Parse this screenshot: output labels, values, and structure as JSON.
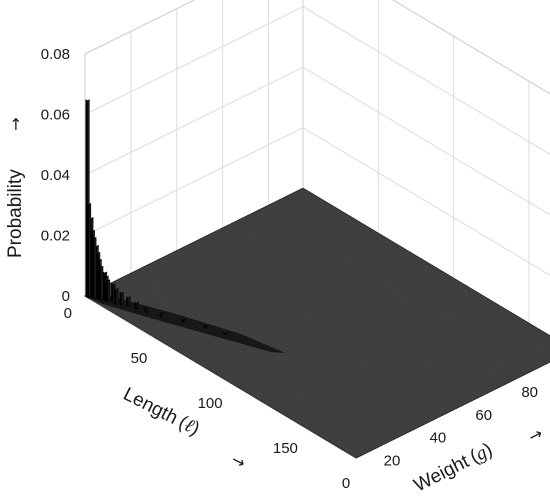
{
  "chart_data": {
    "type": "3d-histogram",
    "title": "",
    "zlabel": "Probability",
    "zlabel_arrow": "→",
    "xlabel_text": "Length",
    "xlabel_symbol_open": "(",
    "xlabel_symbol": "ℓ",
    "xlabel_symbol_close": ")",
    "xlabel_arrow": "→",
    "ylabel_text": "Weight",
    "ylabel_symbol_open": "(",
    "ylabel_symbol": "g",
    "ylabel_symbol_close": ")",
    "ylabel_arrow": "→",
    "x_ticks": [
      "0",
      "50",
      "100",
      "150"
    ],
    "y_ticks": [
      "0",
      "20",
      "40",
      "60",
      "80"
    ],
    "z_ticks": [
      "0",
      "0.02",
      "0.04",
      "0.06",
      "0.08"
    ],
    "xlim": [
      0,
      180
    ],
    "ylim": [
      0,
      95
    ],
    "zlim": [
      0,
      0.08
    ],
    "grid": true,
    "surface_color": "#3d3d3d",
    "bar_color": "#000000",
    "peak_bars": [
      {
        "length": 1,
        "weight": 0,
        "probability": 0.065
      },
      {
        "length": 2,
        "weight": 0,
        "probability": 0.031
      },
      {
        "length": 2,
        "weight": 1,
        "probability": 0.026
      },
      {
        "length": 3,
        "weight": 1,
        "probability": 0.022
      },
      {
        "length": 4,
        "weight": 1,
        "probability": 0.02
      },
      {
        "length": 4,
        "weight": 2,
        "probability": 0.017
      },
      {
        "length": 5,
        "weight": 2,
        "probability": 0.015
      },
      {
        "length": 6,
        "weight": 2,
        "probability": 0.013
      },
      {
        "length": 7,
        "weight": 2,
        "probability": 0.011
      },
      {
        "length": 8,
        "weight": 3,
        "probability": 0.009
      },
      {
        "length": 9,
        "weight": 3,
        "probability": 0.008
      },
      {
        "length": 10,
        "weight": 3,
        "probability": 0.007
      },
      {
        "length": 12,
        "weight": 4,
        "probability": 0.006
      },
      {
        "length": 14,
        "weight": 4,
        "probability": 0.005
      },
      {
        "length": 16,
        "weight": 5,
        "probability": 0.004
      },
      {
        "length": 19,
        "weight": 6,
        "probability": 0.003
      },
      {
        "length": 23,
        "weight": 7,
        "probability": 0.002
      },
      {
        "length": 28,
        "weight": 8,
        "probability": 0.0015
      },
      {
        "length": 35,
        "weight": 10,
        "probability": 0.001
      },
      {
        "length": 45,
        "weight": 13,
        "probability": 0.0007
      },
      {
        "length": 55,
        "weight": 16,
        "probability": 0.0005
      },
      {
        "length": 65,
        "weight": 18,
        "probability": 0.0003
      }
    ]
  }
}
